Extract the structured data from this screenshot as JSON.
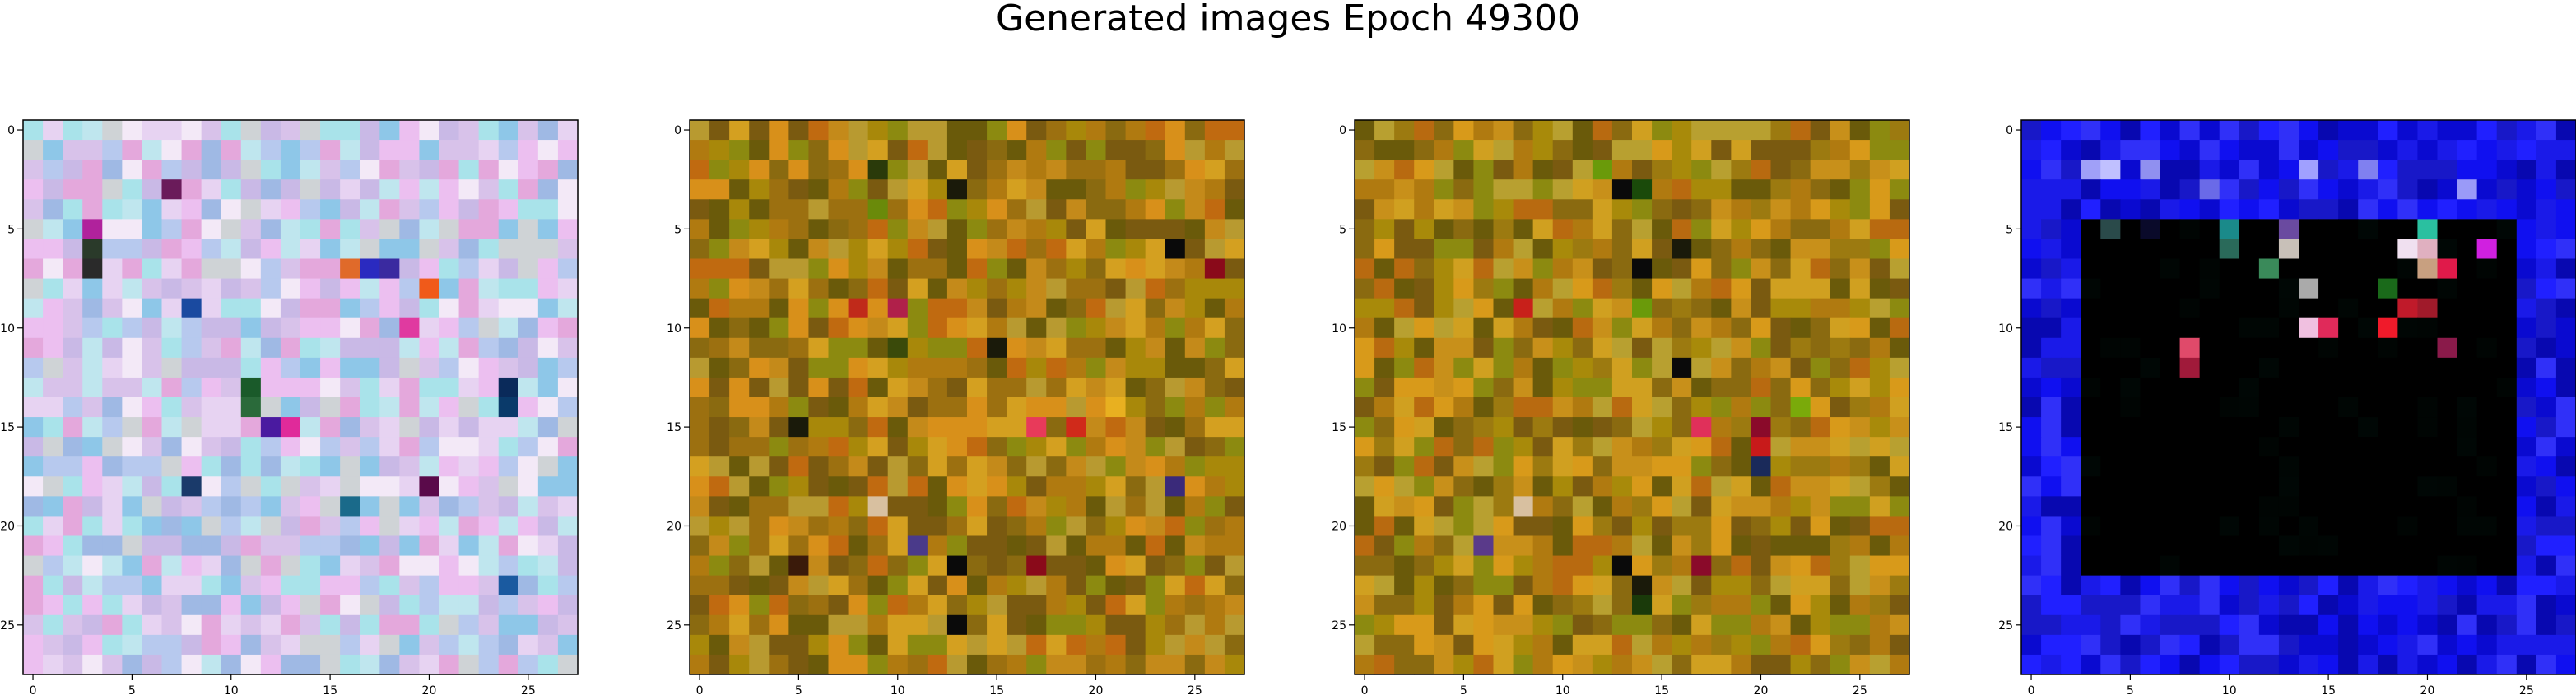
{
  "figure": {
    "title": "Generated images Epoch 49300"
  },
  "chart_data": [
    {
      "type": "heatmap",
      "palette": "pastel",
      "grid_size": 28,
      "xlim": [
        0,
        27
      ],
      "ylim": [
        27,
        0
      ],
      "xticks": [
        "0",
        "5",
        "10",
        "15",
        "20",
        "25"
      ],
      "yticks": [
        "0",
        "5",
        "10",
        "15",
        "20",
        "25"
      ],
      "colors": [
        "#c9b9e6",
        "#b7c9ee",
        "#e7d3f2",
        "#f3e9f7",
        "#bfe6ee",
        "#d8c2ea",
        "#9fb9e4",
        "#e4a8dc",
        "#a9e3ea",
        "#cfd3d6",
        "#8ec7e8",
        "#ecbff0"
      ],
      "accents": [
        {
          "row": 3,
          "col": 7,
          "color": "#6a1b5a"
        },
        {
          "row": 5,
          "col": 3,
          "color": "#b0229c"
        },
        {
          "row": 6,
          "col": 3,
          "color": "#2a3a2a"
        },
        {
          "row": 7,
          "col": 3,
          "color": "#2a2a2a"
        },
        {
          "row": 7,
          "col": 16,
          "color": "#e06a2a"
        },
        {
          "row": 7,
          "col": 18,
          "color": "#3a2aa0"
        },
        {
          "row": 7,
          "col": 17,
          "color": "#2a2ac0"
        },
        {
          "row": 8,
          "col": 20,
          "color": "#f05a1a"
        },
        {
          "row": 9,
          "col": 8,
          "color": "#1a4aa0"
        },
        {
          "row": 10,
          "col": 19,
          "color": "#e03aa0"
        },
        {
          "row": 13,
          "col": 11,
          "color": "#1a5a2a"
        },
        {
          "row": 14,
          "col": 11,
          "color": "#2a6a3a"
        },
        {
          "row": 13,
          "col": 24,
          "color": "#0a2a5a"
        },
        {
          "row": 14,
          "col": 24,
          "color": "#0a3a6a"
        },
        {
          "row": 15,
          "col": 12,
          "color": "#4a1aa0"
        },
        {
          "row": 15,
          "col": 13,
          "color": "#e02a9a"
        },
        {
          "row": 18,
          "col": 8,
          "color": "#1a3a6a"
        },
        {
          "row": 18,
          "col": 20,
          "color": "#5a0a4a"
        },
        {
          "row": 19,
          "col": 16,
          "color": "#1a6a8a"
        },
        {
          "row": 23,
          "col": 24,
          "color": "#1a5aa0"
        }
      ]
    },
    {
      "type": "heatmap",
      "palette": "olive",
      "grid_size": 28,
      "xlim": [
        0,
        27
      ],
      "ylim": [
        27,
        0
      ],
      "xticks": [
        "0",
        "5",
        "10",
        "15",
        "20",
        "25"
      ],
      "yticks": [
        "0",
        "5",
        "10",
        "15",
        "20",
        "25"
      ],
      "colors": [
        "#b07a10",
        "#8a6a10",
        "#c48a1a",
        "#9c7010",
        "#a8880a",
        "#7a5a10",
        "#d8901a",
        "#c06a10",
        "#8c8a10",
        "#b89a30",
        "#6a5a0a",
        "#d4a020"
      ],
      "accents": [
        {
          "row": 2,
          "col": 9,
          "color": "#2a3a0a"
        },
        {
          "row": 3,
          "col": 13,
          "color": "#1a1a0a"
        },
        {
          "row": 4,
          "col": 9,
          "color": "#6a8a0a"
        },
        {
          "row": 7,
          "col": 26,
          "color": "#8a0a1a"
        },
        {
          "row": 6,
          "col": 24,
          "color": "#0a0a0a"
        },
        {
          "row": 9,
          "col": 8,
          "color": "#c02a1a"
        },
        {
          "row": 9,
          "col": 10,
          "color": "#b0204a"
        },
        {
          "row": 11,
          "col": 10,
          "color": "#3a4a0a"
        },
        {
          "row": 11,
          "col": 15,
          "color": "#1a1a0a"
        },
        {
          "row": 14,
          "col": 21,
          "color": "#e8b020"
        },
        {
          "row": 15,
          "col": 5,
          "color": "#1a1a0a"
        },
        {
          "row": 15,
          "col": 17,
          "color": "#e83a5a"
        },
        {
          "row": 15,
          "col": 19,
          "color": "#d02a1a"
        },
        {
          "row": 18,
          "col": 24,
          "color": "#3a2a7a"
        },
        {
          "row": 19,
          "col": 9,
          "color": "#d8c0a0"
        },
        {
          "row": 21,
          "col": 11,
          "color": "#4a3a8a"
        },
        {
          "row": 22,
          "col": 5,
          "color": "#3a1a0a"
        },
        {
          "row": 22,
          "col": 13,
          "color": "#0a0a0a"
        },
        {
          "row": 22,
          "col": 17,
          "color": "#8a0a1a"
        },
        {
          "row": 25,
          "col": 13,
          "color": "#0a0a0a"
        }
      ]
    },
    {
      "type": "heatmap",
      "palette": "olive",
      "grid_size": 28,
      "xlim": [
        0,
        27
      ],
      "ylim": [
        27,
        0
      ],
      "xticks": [
        "0",
        "5",
        "10",
        "15",
        "20",
        "25"
      ],
      "yticks": [
        "0",
        "5",
        "10",
        "15",
        "20",
        "25"
      ],
      "colors": [
        "#b07a10",
        "#9c7a10",
        "#c8901a",
        "#8a6a10",
        "#a88a0a",
        "#7a5a10",
        "#d89a1a",
        "#b86a10",
        "#8c8a10",
        "#b8a030",
        "#6a5a0a",
        "#d0a020"
      ],
      "accents": [
        {
          "row": 2,
          "col": 12,
          "color": "#6a9a0a"
        },
        {
          "row": 3,
          "col": 13,
          "color": "#0a0a0a"
        },
        {
          "row": 3,
          "col": 14,
          "color": "#1a4a0a"
        },
        {
          "row": 6,
          "col": 16,
          "color": "#1a1a0a"
        },
        {
          "row": 7,
          "col": 14,
          "color": "#0a0a0a"
        },
        {
          "row": 9,
          "col": 8,
          "color": "#c8201a"
        },
        {
          "row": 9,
          "col": 14,
          "color": "#6a9a0a"
        },
        {
          "row": 12,
          "col": 16,
          "color": "#0a0a0a"
        },
        {
          "row": 14,
          "col": 22,
          "color": "#7aaa0a"
        },
        {
          "row": 15,
          "col": 17,
          "color": "#e0305a"
        },
        {
          "row": 15,
          "col": 20,
          "color": "#8a0a2a"
        },
        {
          "row": 16,
          "col": 20,
          "color": "#c81a1a"
        },
        {
          "row": 17,
          "col": 20,
          "color": "#1a2a5a"
        },
        {
          "row": 19,
          "col": 8,
          "color": "#d8c0a0"
        },
        {
          "row": 21,
          "col": 6,
          "color": "#5a3a8a"
        },
        {
          "row": 22,
          "col": 13,
          "color": "#0a0a0a"
        },
        {
          "row": 22,
          "col": 17,
          "color": "#8a0a2a"
        },
        {
          "row": 23,
          "col": 14,
          "color": "#1a1a0a"
        },
        {
          "row": 24,
          "col": 14,
          "color": "#1a3a0a"
        }
      ]
    },
    {
      "type": "heatmap",
      "palette": "blue-frame",
      "grid_size": 28,
      "xlim": [
        0,
        27
      ],
      "ylim": [
        27,
        0
      ],
      "xticks": [
        "0",
        "5",
        "10",
        "15",
        "20",
        "25"
      ],
      "yticks": [
        "0",
        "5",
        "10",
        "15",
        "20",
        "25"
      ],
      "colors": [
        "#1010f0",
        "#0a0ad0",
        "#2020ff",
        "#1a1ae8",
        "#0808b0",
        "#3030f8",
        "#1818c8"
      ],
      "dark_region": {
        "row_start": 5,
        "row_end": 22,
        "col_start": 3,
        "col_end": 24,
        "color": "#000000"
      },
      "accents": [
        {
          "row": 2,
          "col": 3,
          "color": "#a0a0f8"
        },
        {
          "row": 2,
          "col": 4,
          "color": "#c0c0ff"
        },
        {
          "row": 2,
          "col": 6,
          "color": "#9090f0"
        },
        {
          "row": 2,
          "col": 14,
          "color": "#a0a0ff"
        },
        {
          "row": 2,
          "col": 17,
          "color": "#8080f0"
        },
        {
          "row": 3,
          "col": 9,
          "color": "#6a6ae8"
        },
        {
          "row": 3,
          "col": 22,
          "color": "#9a9af8"
        },
        {
          "row": 5,
          "col": 4,
          "color": "#2a4a4a"
        },
        {
          "row": 5,
          "col": 6,
          "color": "#0a0a2a"
        },
        {
          "row": 5,
          "col": 10,
          "color": "#1a8a8a"
        },
        {
          "row": 5,
          "col": 13,
          "color": "#6a4aa0"
        },
        {
          "row": 5,
          "col": 20,
          "color": "#2ac0a0"
        },
        {
          "row": 6,
          "col": 10,
          "color": "#2a6a5a"
        },
        {
          "row": 6,
          "col": 13,
          "color": "#c8c0b8"
        },
        {
          "row": 6,
          "col": 19,
          "color": "#f0e0f0"
        },
        {
          "row": 6,
          "col": 20,
          "color": "#e0b0c0"
        },
        {
          "row": 6,
          "col": 23,
          "color": "#d020e0"
        },
        {
          "row": 7,
          "col": 20,
          "color": "#c8a080"
        },
        {
          "row": 7,
          "col": 21,
          "color": "#e01a4a"
        },
        {
          "row": 7,
          "col": 12,
          "color": "#3a8a5a"
        },
        {
          "row": 8,
          "col": 18,
          "color": "#1a6a1a"
        },
        {
          "row": 8,
          "col": 14,
          "color": "#aaaaaa"
        },
        {
          "row": 9,
          "col": 19,
          "color": "#c01a2a"
        },
        {
          "row": 9,
          "col": 20,
          "color": "#a01a2a"
        },
        {
          "row": 10,
          "col": 14,
          "color": "#f0c0e0"
        },
        {
          "row": 10,
          "col": 15,
          "color": "#e02a5a"
        },
        {
          "row": 10,
          "col": 18,
          "color": "#f01a2a"
        },
        {
          "row": 11,
          "col": 8,
          "color": "#e04a6a"
        },
        {
          "row": 11,
          "col": 21,
          "color": "#8a1a4a"
        },
        {
          "row": 12,
          "col": 8,
          "color": "#a01a3a"
        }
      ]
    }
  ]
}
